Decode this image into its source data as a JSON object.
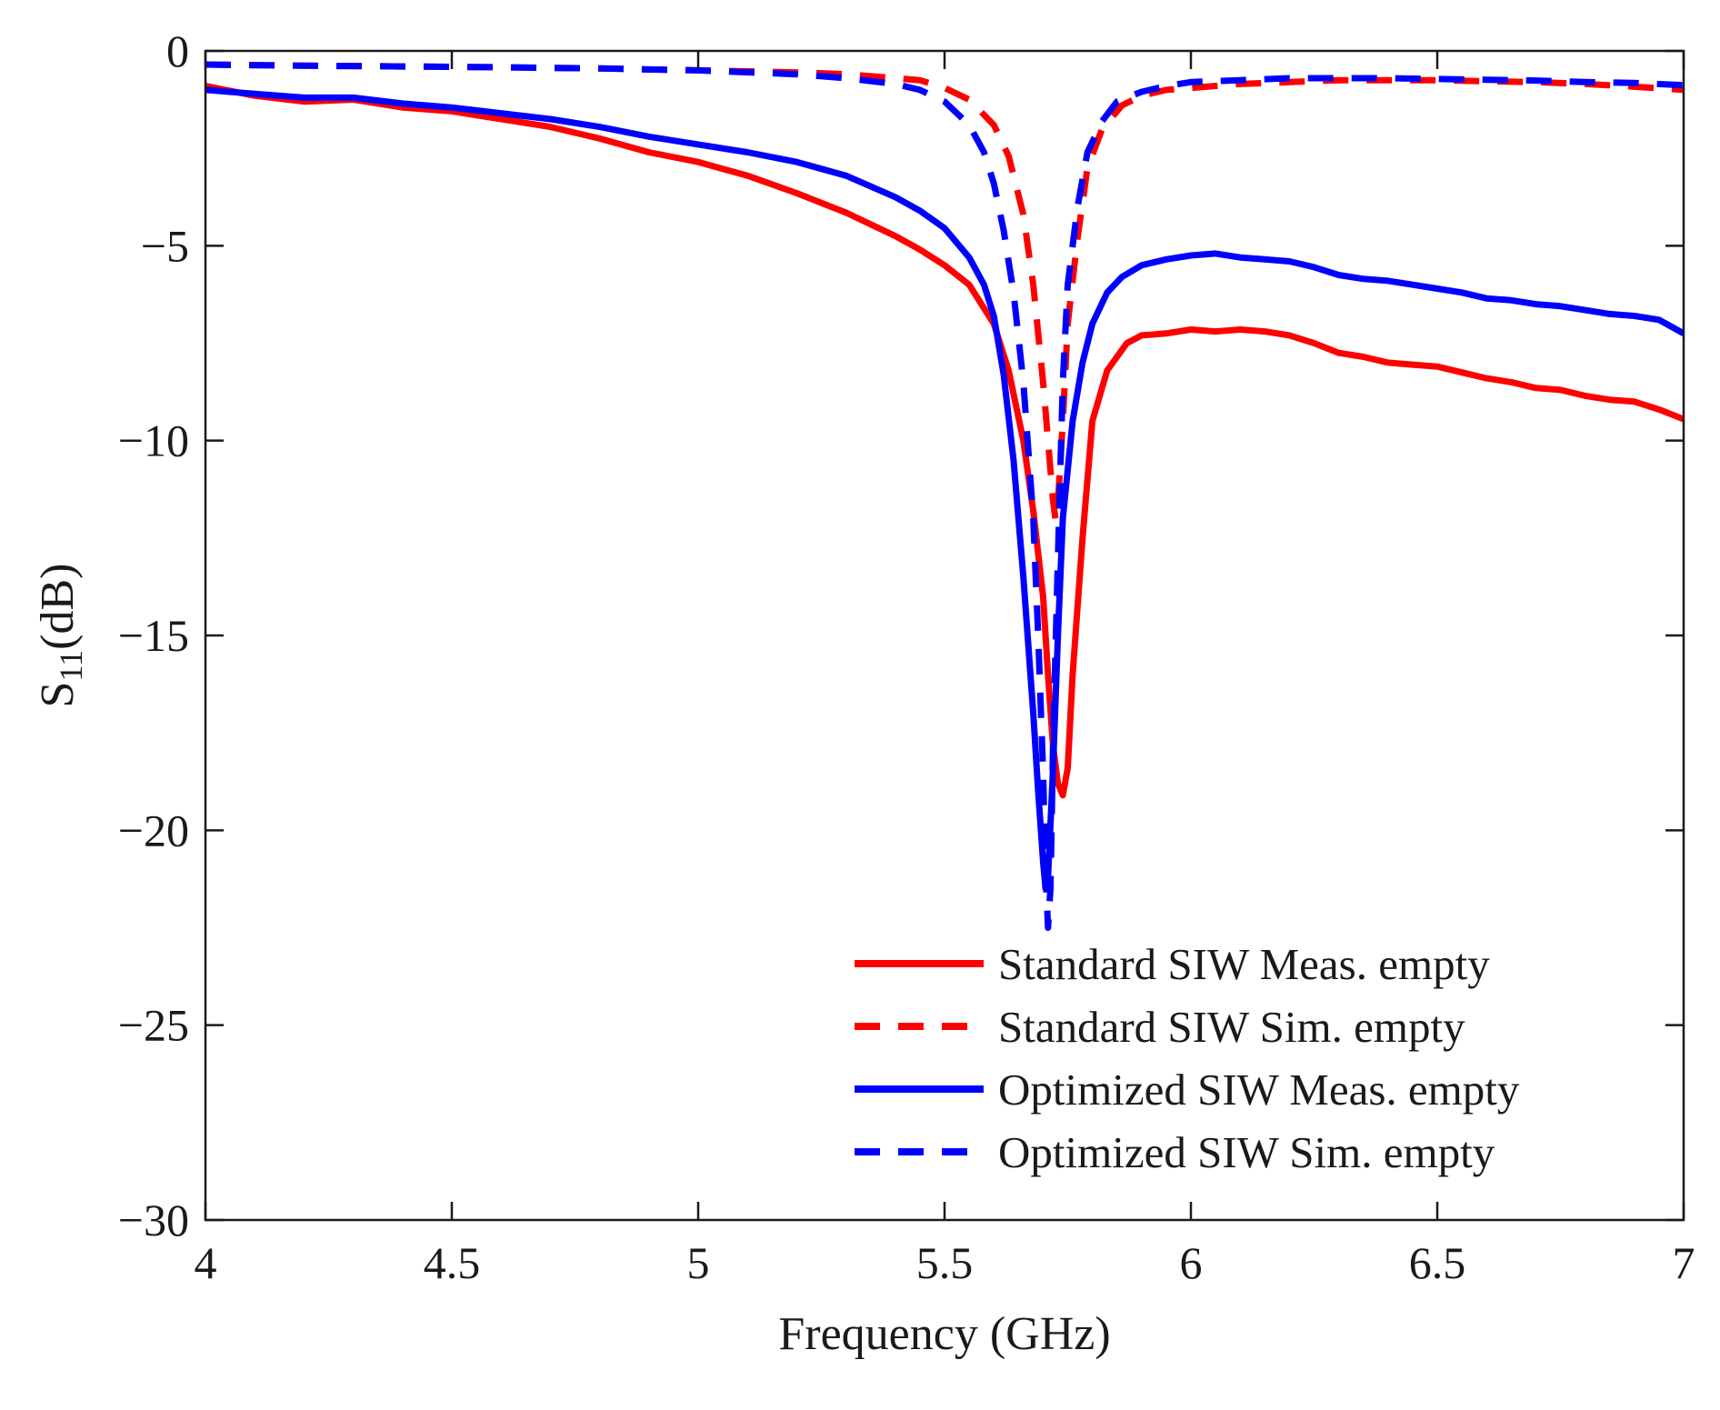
{
  "chart_data": {
    "type": "line",
    "xlabel": "Frequency (GHz)",
    "ylabel_main": "S",
    "ylabel_sub": "11",
    "ylabel_rest": "(dB)",
    "xlim": [
      4,
      7
    ],
    "ylim": [
      -30,
      0
    ],
    "xticks": [
      4,
      4.5,
      5,
      5.5,
      6,
      6.5,
      7
    ],
    "xtick_labels": [
      "4",
      "4.5",
      "5",
      "5.5",
      "6",
      "6.5",
      "7"
    ],
    "yticks": [
      0,
      -5,
      -10,
      -15,
      -20,
      -25,
      -30
    ],
    "ytick_labels": [
      "0",
      "−5",
      "−10",
      "−15",
      "−20",
      "−25",
      "−30"
    ],
    "grid": false,
    "legend_position": "bottom-right",
    "series": [
      {
        "name": "Standard SIW Meas. empty",
        "color": "#ff0000",
        "style": "solid",
        "points": [
          [
            4.0,
            -0.9
          ],
          [
            4.1,
            -1.15
          ],
          [
            4.2,
            -1.3
          ],
          [
            4.3,
            -1.25
          ],
          [
            4.4,
            -1.45
          ],
          [
            4.5,
            -1.55
          ],
          [
            4.6,
            -1.75
          ],
          [
            4.7,
            -1.95
          ],
          [
            4.8,
            -2.25
          ],
          [
            4.9,
            -2.6
          ],
          [
            5.0,
            -2.85
          ],
          [
            5.1,
            -3.2
          ],
          [
            5.2,
            -3.65
          ],
          [
            5.3,
            -4.15
          ],
          [
            5.4,
            -4.75
          ],
          [
            5.45,
            -5.1
          ],
          [
            5.5,
            -5.5
          ],
          [
            5.55,
            -6.0
          ],
          [
            5.6,
            -7.0
          ],
          [
            5.63,
            -8.2
          ],
          [
            5.66,
            -10.0
          ],
          [
            5.68,
            -11.8
          ],
          [
            5.7,
            -14.0
          ],
          [
            5.71,
            -16.0
          ],
          [
            5.72,
            -17.8
          ],
          [
            5.73,
            -18.8
          ],
          [
            5.74,
            -19.1
          ],
          [
            5.75,
            -18.4
          ],
          [
            5.76,
            -16.0
          ],
          [
            5.78,
            -12.5
          ],
          [
            5.8,
            -9.5
          ],
          [
            5.83,
            -8.2
          ],
          [
            5.87,
            -7.5
          ],
          [
            5.9,
            -7.3
          ],
          [
            5.95,
            -7.25
          ],
          [
            6.0,
            -7.15
          ],
          [
            6.05,
            -7.2
          ],
          [
            6.1,
            -7.15
          ],
          [
            6.15,
            -7.2
          ],
          [
            6.2,
            -7.3
          ],
          [
            6.25,
            -7.5
          ],
          [
            6.3,
            -7.75
          ],
          [
            6.35,
            -7.85
          ],
          [
            6.4,
            -8.0
          ],
          [
            6.45,
            -8.05
          ],
          [
            6.5,
            -8.1
          ],
          [
            6.55,
            -8.25
          ],
          [
            6.6,
            -8.4
          ],
          [
            6.65,
            -8.5
          ],
          [
            6.7,
            -8.65
          ],
          [
            6.75,
            -8.7
          ],
          [
            6.8,
            -8.85
          ],
          [
            6.85,
            -8.95
          ],
          [
            6.9,
            -9.0
          ],
          [
            6.95,
            -9.2
          ],
          [
            7.0,
            -9.45
          ]
        ]
      },
      {
        "name": "Standard SIW Sim. empty",
        "color": "#ff0000",
        "style": "dashed",
        "points": [
          [
            4.0,
            -0.35
          ],
          [
            4.2,
            -0.38
          ],
          [
            4.4,
            -0.4
          ],
          [
            4.6,
            -0.42
          ],
          [
            4.8,
            -0.45
          ],
          [
            5.0,
            -0.5
          ],
          [
            5.2,
            -0.55
          ],
          [
            5.3,
            -0.6
          ],
          [
            5.4,
            -0.7
          ],
          [
            5.45,
            -0.75
          ],
          [
            5.5,
            -0.95
          ],
          [
            5.55,
            -1.25
          ],
          [
            5.6,
            -1.9
          ],
          [
            5.63,
            -2.7
          ],
          [
            5.66,
            -4.2
          ],
          [
            5.68,
            -6.0
          ],
          [
            5.7,
            -8.5
          ],
          [
            5.71,
            -10.0
          ],
          [
            5.72,
            -11.5
          ],
          [
            5.725,
            -12.0
          ],
          [
            5.73,
            -11.6
          ],
          [
            5.74,
            -9.5
          ],
          [
            5.75,
            -7.0
          ],
          [
            5.77,
            -4.8
          ],
          [
            5.79,
            -3.0
          ],
          [
            5.82,
            -2.0
          ],
          [
            5.86,
            -1.4
          ],
          [
            5.9,
            -1.15
          ],
          [
            5.95,
            -1.0
          ],
          [
            6.0,
            -0.95
          ],
          [
            6.1,
            -0.85
          ],
          [
            6.2,
            -0.8
          ],
          [
            6.3,
            -0.75
          ],
          [
            6.4,
            -0.75
          ],
          [
            6.5,
            -0.75
          ],
          [
            6.6,
            -0.78
          ],
          [
            6.7,
            -0.8
          ],
          [
            6.8,
            -0.85
          ],
          [
            6.9,
            -0.92
          ],
          [
            7.0,
            -1.0
          ]
        ]
      },
      {
        "name": "Optimized SIW Meas. empty",
        "color": "#0000ff",
        "style": "solid",
        "points": [
          [
            4.0,
            -1.0
          ],
          [
            4.1,
            -1.1
          ],
          [
            4.2,
            -1.2
          ],
          [
            4.3,
            -1.2
          ],
          [
            4.4,
            -1.35
          ],
          [
            4.5,
            -1.45
          ],
          [
            4.6,
            -1.6
          ],
          [
            4.7,
            -1.75
          ],
          [
            4.8,
            -1.95
          ],
          [
            4.9,
            -2.2
          ],
          [
            5.0,
            -2.4
          ],
          [
            5.1,
            -2.6
          ],
          [
            5.2,
            -2.85
          ],
          [
            5.3,
            -3.2
          ],
          [
            5.4,
            -3.75
          ],
          [
            5.45,
            -4.1
          ],
          [
            5.5,
            -4.55
          ],
          [
            5.55,
            -5.3
          ],
          [
            5.58,
            -6.0
          ],
          [
            5.6,
            -6.8
          ],
          [
            5.62,
            -8.3
          ],
          [
            5.64,
            -10.5
          ],
          [
            5.66,
            -13.5
          ],
          [
            5.68,
            -17.0
          ],
          [
            5.69,
            -19.0
          ],
          [
            5.7,
            -20.8
          ],
          [
            5.705,
            -21.5
          ],
          [
            5.71,
            -21.2
          ],
          [
            5.72,
            -18.5
          ],
          [
            5.73,
            -15.0
          ],
          [
            5.74,
            -12.0
          ],
          [
            5.76,
            -9.5
          ],
          [
            5.78,
            -8.0
          ],
          [
            5.8,
            -7.0
          ],
          [
            5.83,
            -6.2
          ],
          [
            5.86,
            -5.8
          ],
          [
            5.9,
            -5.5
          ],
          [
            5.95,
            -5.35
          ],
          [
            6.0,
            -5.25
          ],
          [
            6.05,
            -5.2
          ],
          [
            6.1,
            -5.3
          ],
          [
            6.15,
            -5.35
          ],
          [
            6.2,
            -5.4
          ],
          [
            6.25,
            -5.55
          ],
          [
            6.3,
            -5.75
          ],
          [
            6.35,
            -5.85
          ],
          [
            6.4,
            -5.9
          ],
          [
            6.45,
            -6.0
          ],
          [
            6.5,
            -6.1
          ],
          [
            6.55,
            -6.2
          ],
          [
            6.6,
            -6.35
          ],
          [
            6.65,
            -6.4
          ],
          [
            6.7,
            -6.5
          ],
          [
            6.75,
            -6.55
          ],
          [
            6.8,
            -6.65
          ],
          [
            6.85,
            -6.75
          ],
          [
            6.9,
            -6.8
          ],
          [
            6.95,
            -6.9
          ],
          [
            7.0,
            -7.25
          ]
        ]
      },
      {
        "name": "Optimized SIW Sim. empty",
        "color": "#0000ff",
        "style": "dashed",
        "points": [
          [
            4.0,
            -0.35
          ],
          [
            4.2,
            -0.38
          ],
          [
            4.4,
            -0.4
          ],
          [
            4.6,
            -0.42
          ],
          [
            4.8,
            -0.45
          ],
          [
            5.0,
            -0.5
          ],
          [
            5.2,
            -0.6
          ],
          [
            5.3,
            -0.7
          ],
          [
            5.4,
            -0.85
          ],
          [
            5.45,
            -1.0
          ],
          [
            5.5,
            -1.3
          ],
          [
            5.55,
            -1.9
          ],
          [
            5.58,
            -2.6
          ],
          [
            5.6,
            -3.4
          ],
          [
            5.62,
            -4.6
          ],
          [
            5.64,
            -6.2
          ],
          [
            5.66,
            -8.5
          ],
          [
            5.68,
            -12.0
          ],
          [
            5.69,
            -15.0
          ],
          [
            5.7,
            -18.5
          ],
          [
            5.705,
            -21.0
          ],
          [
            5.71,
            -22.5
          ],
          [
            5.715,
            -21.5
          ],
          [
            5.72,
            -18.0
          ],
          [
            5.73,
            -13.0
          ],
          [
            5.74,
            -8.5
          ],
          [
            5.75,
            -6.0
          ],
          [
            5.77,
            -4.0
          ],
          [
            5.79,
            -2.6
          ],
          [
            5.82,
            -1.8
          ],
          [
            5.85,
            -1.3
          ],
          [
            5.9,
            -1.05
          ],
          [
            5.95,
            -0.9
          ],
          [
            6.0,
            -0.8
          ],
          [
            6.1,
            -0.75
          ],
          [
            6.2,
            -0.7
          ],
          [
            6.3,
            -0.7
          ],
          [
            6.4,
            -0.7
          ],
          [
            6.5,
            -0.72
          ],
          [
            6.6,
            -0.74
          ],
          [
            6.7,
            -0.76
          ],
          [
            6.8,
            -0.8
          ],
          [
            6.9,
            -0.82
          ],
          [
            7.0,
            -0.88
          ]
        ]
      }
    ]
  }
}
